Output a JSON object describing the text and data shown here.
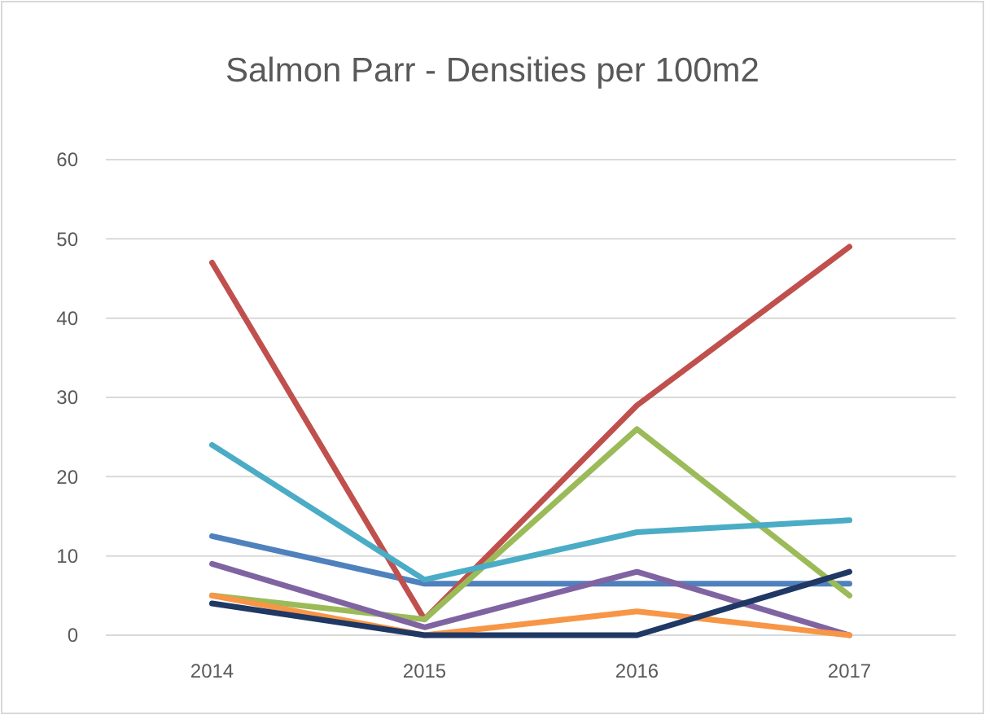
{
  "chart_data": {
    "type": "line",
    "title": "Salmon Parr - Densities per 100m2",
    "categories": [
      "2014",
      "2015",
      "2016",
      "2017"
    ],
    "series": [
      {
        "color": "#4f81bd",
        "values": [
          12.5,
          6.5,
          6.5,
          6.5
        ]
      },
      {
        "color": "#c0504d",
        "values": [
          47,
          2,
          29,
          49
        ]
      },
      {
        "color": "#9bbb59",
        "values": [
          5,
          2,
          26,
          5
        ]
      },
      {
        "color": "#8064a2",
        "values": [
          9,
          1,
          8,
          0
        ]
      },
      {
        "color": "#4bacc6",
        "values": [
          24,
          7,
          13,
          14.5
        ]
      },
      {
        "color": "#f79646",
        "values": [
          5,
          0,
          3,
          0
        ]
      },
      {
        "color": "#1f3864",
        "values": [
          4,
          0,
          0,
          8
        ]
      }
    ],
    "ylim": [
      0,
      60
    ],
    "yticks": [
      0,
      10,
      20,
      30,
      40,
      50,
      60
    ],
    "grid": "y",
    "marker": "none",
    "line_style": "solid"
  }
}
